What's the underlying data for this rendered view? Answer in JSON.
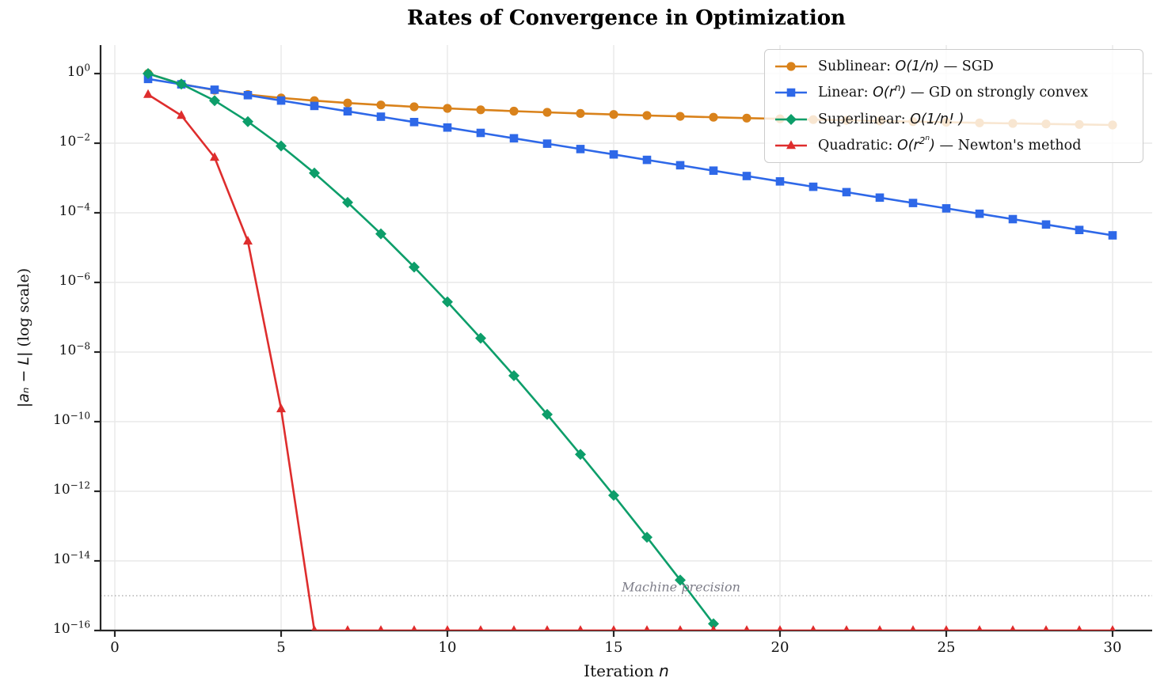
{
  "chart_data": {
    "type": "line",
    "title": "Rates of Convergence in Optimization",
    "xlabel_text": "Iteration",
    "xlabel_math": "n",
    "ylabel_math": "|aₙ − L|",
    "ylabel_text": " (log scale)",
    "yscale": "log",
    "xlim": [
      -0.45,
      31.45
    ],
    "ylim": [
      1e-16,
      6.6
    ],
    "x_ticks": [
      0,
      5,
      10,
      15,
      20,
      25,
      30
    ],
    "y_tick_exponents": [
      0,
      -2,
      -4,
      -6,
      -8,
      -10,
      -12,
      -14,
      -16
    ],
    "grid": true,
    "legend_position": "upper right",
    "annotation": {
      "text": "Machine precision",
      "y_value": 1e-15,
      "x_center": 17
    },
    "colors": {
      "sublinear": "#D9821B",
      "linear": "#2E68E8",
      "superlinear": "#0D9E6A",
      "quadratic": "#DE2D2D",
      "grid": "#E8E8E8",
      "spine": "#262626",
      "dotted_line": "#b3b3b3",
      "annotation_text": "#7d7d88"
    },
    "series": [
      {
        "id": "sublinear",
        "name": "Sublinear: O(1/n) — SGD",
        "color": "#D9821B",
        "marker": "circle",
        "legend_segments": [
          [
            "Sublinear: ",
            "t"
          ],
          [
            "O(1/n)",
            "m"
          ],
          [
            " — SGD",
            "t"
          ]
        ],
        "x": [
          1,
          2,
          3,
          4,
          5,
          6,
          7,
          8,
          9,
          10,
          11,
          12,
          13,
          14,
          15,
          16,
          17,
          18,
          19,
          20,
          21,
          22,
          23,
          24,
          25,
          26,
          27,
          28,
          29,
          30
        ],
        "y": [
          1,
          0.5,
          0.333333,
          0.25,
          0.2,
          0.166667,
          0.142857,
          0.125,
          0.111111,
          0.1,
          0.0909091,
          0.0833333,
          0.0769231,
          0.0714286,
          0.0666667,
          0.0625,
          0.0588235,
          0.0555556,
          0.0526316,
          0.05,
          0.047619,
          0.0454545,
          0.0434783,
          0.0416667,
          0.04,
          0.0384615,
          0.037037,
          0.0357143,
          0.0344828,
          0.0333333
        ]
      },
      {
        "id": "linear",
        "name": "Linear: O(r^n) — GD on strongly convex",
        "color": "#2E68E8",
        "marker": "square",
        "legend_segments": [
          [
            "Linear: ",
            "t"
          ],
          [
            "O(r",
            "m"
          ],
          [
            "n",
            "m1"
          ],
          [
            ")",
            "m"
          ],
          [
            " — GD on strongly convex",
            "t"
          ]
        ],
        "x": [
          1,
          2,
          3,
          4,
          5,
          6,
          7,
          8,
          9,
          10,
          11,
          12,
          13,
          14,
          15,
          16,
          17,
          18,
          19,
          20,
          21,
          22,
          23,
          24,
          25,
          26,
          27,
          28,
          29,
          30
        ],
        "y": [
          0.7,
          0.49,
          0.343,
          0.2401,
          0.16807,
          0.117649,
          0.0823543,
          0.057648,
          0.0403536,
          0.0282475,
          0.0197733,
          0.0138413,
          0.0096889,
          0.00678223,
          0.00474756,
          0.00332329,
          0.0023263,
          0.00162841,
          0.00113989,
          0.000797923,
          0.000558546,
          0.000390982,
          0.000273687,
          0.000191581,
          0.000134107,
          9.38747e-05,
          6.57123e-05,
          4.59986e-05,
          3.2199e-05,
          2.25393e-05
        ]
      },
      {
        "id": "superlinear",
        "name": "Superlinear: O(1/n!)",
        "color": "#0D9E6A",
        "marker": "diamond",
        "legend_segments": [
          [
            "Superlinear: ",
            "t"
          ],
          [
            "O(1/n! )",
            "m"
          ]
        ],
        "x": [
          1,
          2,
          3,
          4,
          5,
          6,
          7,
          8,
          9,
          10,
          11,
          12,
          13,
          14,
          15,
          16,
          17,
          18
        ],
        "y": [
          1,
          0.5,
          0.166667,
          0.0416667,
          0.00833333,
          0.00138889,
          0.000198413,
          2.48016e-05,
          2.75573e-06,
          2.75573e-07,
          2.50521e-08,
          2.08768e-09,
          1.6059e-10,
          1.14707e-11,
          7.64716e-13,
          4.77948e-14,
          2.81146e-15,
          1.56192e-16
        ]
      },
      {
        "id": "quadratic",
        "name": "Quadratic: O(r^(2^n)) — Newton's method",
        "color": "#DE2D2D",
        "marker": "triangle",
        "legend_segments": [
          [
            "Quadratic: ",
            "t"
          ],
          [
            "O(r",
            "m"
          ],
          [
            "2",
            "m1"
          ],
          [
            "n",
            "m2"
          ],
          [
            ")",
            "m"
          ],
          [
            " — Newton's method",
            "t"
          ]
        ],
        "x": [
          1,
          2,
          3,
          4,
          5,
          6,
          7,
          8,
          9,
          10,
          11,
          12,
          13,
          14,
          15,
          16,
          17,
          18,
          19,
          20,
          21,
          22,
          23,
          24,
          25,
          26,
          27,
          28,
          29,
          30
        ],
        "y": [
          0.25,
          0.0625,
          0.00390625,
          1.52588e-05,
          2.32831e-10,
          1e-16,
          1e-16,
          1e-16,
          1e-16,
          1e-16,
          1e-16,
          1e-16,
          1e-16,
          1e-16,
          1e-16,
          1e-16,
          1e-16,
          1e-16,
          1e-16,
          1e-16,
          1e-16,
          1e-16,
          1e-16,
          1e-16,
          1e-16,
          1e-16,
          1e-16,
          1e-16,
          1e-16,
          1e-16
        ]
      }
    ]
  }
}
